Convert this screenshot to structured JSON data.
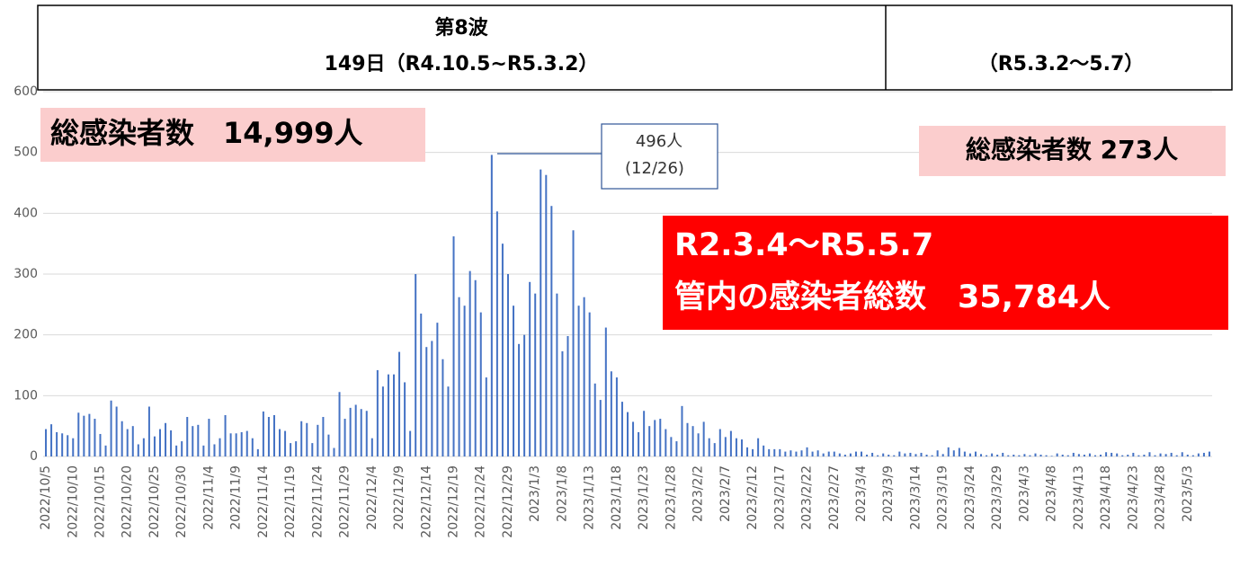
{
  "chart_data": {
    "type": "bar",
    "header": {
      "wave": "第8波",
      "period": "149日（R4.10.5~R5.3.2）",
      "after": "（R5.3.2〜5.7）"
    },
    "annotations": {
      "wave_total": "総感染者数　14,999人",
      "after_total": "総感染者数 273人",
      "all_period": "R2.3.4〜R5.5.7",
      "all_total": "管内の感染者総数　35,784人",
      "peak_value": "496人",
      "peak_date": "(12/26)"
    },
    "categories": [
      "2022/10/5",
      null,
      null,
      null,
      null,
      "2022/10/10",
      null,
      null,
      null,
      null,
      "2022/10/15",
      null,
      null,
      null,
      null,
      "2022/10/20",
      null,
      null,
      null,
      null,
      "2022/10/25",
      null,
      null,
      null,
      null,
      "2022/10/30",
      null,
      null,
      null,
      null,
      "2022/11/4",
      null,
      null,
      null,
      null,
      "2022/11/9",
      null,
      null,
      null,
      null,
      "2022/11/14",
      null,
      null,
      null,
      null,
      "2022/11/19",
      null,
      null,
      null,
      null,
      "2022/11/24",
      null,
      null,
      null,
      null,
      "2022/11/29",
      null,
      null,
      null,
      null,
      "2022/12/4",
      null,
      null,
      null,
      null,
      "2022/12/9",
      null,
      null,
      null,
      null,
      "2022/12/14",
      null,
      null,
      null,
      null,
      "2022/12/19",
      null,
      null,
      null,
      null,
      "2022/12/24",
      null,
      null,
      null,
      null,
      "2022/12/29",
      null,
      null,
      null,
      null,
      "2023/1/3",
      null,
      null,
      null,
      null,
      "2023/1/8",
      null,
      null,
      null,
      null,
      "2023/1/13",
      null,
      null,
      null,
      null,
      "2023/1/18",
      null,
      null,
      null,
      null,
      "2023/1/23",
      null,
      null,
      null,
      null,
      "2023/1/28",
      null,
      null,
      null,
      null,
      "2023/2/2",
      null,
      null,
      null,
      null,
      "2023/2/7",
      null,
      null,
      null,
      null,
      "2023/2/12",
      null,
      null,
      null,
      null,
      "2023/2/17",
      null,
      null,
      null,
      null,
      "2023/2/22",
      null,
      null,
      null,
      null,
      "2023/2/27",
      null,
      null,
      null,
      null,
      "2023/3/4",
      null,
      null,
      null,
      null,
      "2023/3/9",
      null,
      null,
      null,
      null,
      "2023/3/14",
      null,
      null,
      null,
      null,
      "2023/3/19",
      null,
      null,
      null,
      null,
      "2023/3/24",
      null,
      null,
      null,
      null,
      "2023/3/29",
      null,
      null,
      null,
      null,
      "2023/4/3",
      null,
      null,
      null,
      null,
      "2023/4/8",
      null,
      null,
      null,
      null,
      "2023/4/13",
      null,
      null,
      null,
      null,
      "2023/4/18",
      null,
      null,
      null,
      null,
      "2023/4/23",
      null,
      null,
      null,
      null,
      "2023/4/28",
      null,
      null,
      null,
      null,
      "2023/5/3",
      null,
      null,
      null,
      null
    ],
    "values": [
      45,
      53,
      40,
      38,
      35,
      30,
      72,
      67,
      70,
      62,
      37,
      18,
      92,
      82,
      58,
      45,
      50,
      20,
      30,
      82,
      33,
      45,
      55,
      43,
      18,
      25,
      65,
      50,
      52,
      18,
      62,
      20,
      30,
      68,
      38,
      38,
      40,
      42,
      30,
      12,
      74,
      65,
      68,
      45,
      42,
      22,
      25,
      58,
      55,
      22,
      52,
      65,
      36,
      14,
      106,
      62,
      80,
      85,
      78,
      75,
      30,
      142,
      115,
      135,
      135,
      172,
      122,
      42,
      300,
      235,
      180,
      190,
      220,
      160,
      115,
      362,
      262,
      248,
      305,
      290,
      237,
      130,
      496,
      403,
      350,
      300,
      248,
      185,
      200,
      287,
      268,
      472,
      463,
      412,
      268,
      173,
      198,
      372,
      248,
      262,
      237,
      120,
      93,
      212,
      140,
      130,
      90,
      73,
      57,
      40,
      75,
      50,
      60,
      62,
      45,
      32,
      25,
      83,
      55,
      50,
      38,
      57,
      30,
      22,
      45,
      32,
      42,
      30,
      28,
      15,
      12,
      30,
      18,
      12,
      12,
      12,
      8,
      10,
      8,
      10,
      15,
      8,
      10,
      5,
      8,
      8,
      5,
      3,
      5,
      8,
      8,
      3,
      6,
      2,
      5,
      3,
      2,
      8,
      5,
      6,
      4,
      6,
      3,
      2,
      10,
      4,
      15,
      10,
      14,
      8,
      5,
      8,
      4,
      2,
      5,
      3,
      6,
      2,
      3,
      2,
      4,
      2,
      5,
      3,
      2,
      1,
      5,
      3,
      2,
      6,
      4,
      3,
      5,
      2,
      3,
      7,
      6,
      5,
      2,
      3,
      6,
      2,
      3,
      7,
      2,
      5,
      4,
      6,
      2,
      7,
      3,
      2,
      5,
      6,
      8
    ],
    "color": "#4472c4",
    "ylim": [
      0,
      600
    ],
    "yticks": [
      0,
      100,
      200,
      300,
      400,
      500,
      600
    ],
    "grid": true
  }
}
